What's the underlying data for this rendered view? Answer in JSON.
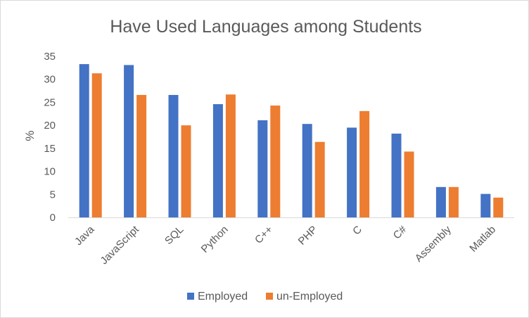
{
  "chart_data": {
    "type": "bar",
    "title": "Have Used Languages among Students",
    "xlabel": "",
    "ylabel": "%",
    "ylim": [
      0,
      35
    ],
    "yticks": [
      0,
      5,
      10,
      15,
      20,
      25,
      30,
      35
    ],
    "grid": false,
    "legend_position": "bottom",
    "categories": [
      "Java",
      "JavaScript",
      "SQL",
      "Python",
      "C++",
      "PHP",
      "C",
      "C#",
      "Assembly",
      "Matlab"
    ],
    "series": [
      {
        "name": "Employed",
        "color": "#4472C4",
        "values": [
          33.3,
          33.1,
          26.6,
          24.6,
          21.1,
          20.3,
          19.5,
          18.2,
          6.6,
          5.1
        ]
      },
      {
        "name": "un-Employed",
        "color": "#ED7D31",
        "values": [
          31.3,
          26.6,
          20.0,
          26.7,
          24.3,
          16.4,
          23.1,
          14.3,
          6.6,
          4.3
        ]
      }
    ]
  }
}
